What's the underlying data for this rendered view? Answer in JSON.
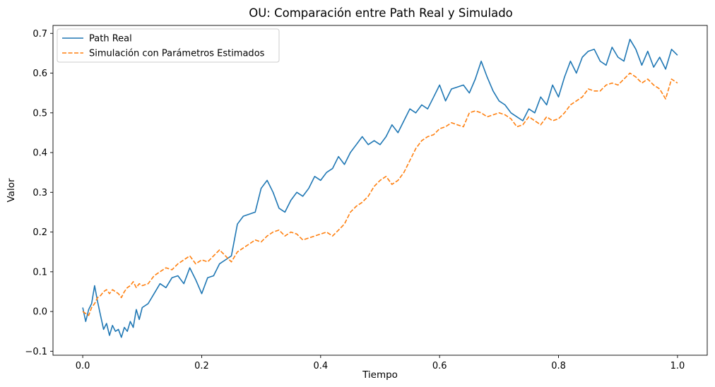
{
  "chart_data": {
    "type": "line",
    "title": "OU: Comparación entre Path Real y Simulado",
    "xlabel": "Tiempo",
    "ylabel": "Valor",
    "xlim": [
      -0.05,
      1.05
    ],
    "ylim": [
      -0.11,
      0.72
    ],
    "xticks": [
      0.0,
      0.2,
      0.4,
      0.6,
      0.8,
      1.0
    ],
    "xtick_labels": [
      "0.0",
      "0.2",
      "0.4",
      "0.6",
      "0.8",
      "1.0"
    ],
    "yticks": [
      -0.1,
      0.0,
      0.1,
      0.2,
      0.3,
      0.4,
      0.5,
      0.6,
      0.7
    ],
    "ytick_labels": [
      "−0.1",
      "0.0",
      "0.1",
      "0.2",
      "0.3",
      "0.4",
      "0.5",
      "0.6",
      "0.7"
    ],
    "grid": false,
    "legend_position": "top-left",
    "series": [
      {
        "name": "Path Real",
        "color": "#1f77b4",
        "style": "solid",
        "x": [
          0.0,
          0.005,
          0.01,
          0.015,
          0.02,
          0.025,
          0.03,
          0.035,
          0.04,
          0.045,
          0.05,
          0.055,
          0.06,
          0.065,
          0.07,
          0.075,
          0.08,
          0.085,
          0.09,
          0.095,
          0.1,
          0.11,
          0.12,
          0.13,
          0.14,
          0.15,
          0.16,
          0.17,
          0.18,
          0.19,
          0.2,
          0.21,
          0.22,
          0.23,
          0.24,
          0.25,
          0.26,
          0.27,
          0.28,
          0.29,
          0.3,
          0.31,
          0.32,
          0.33,
          0.34,
          0.35,
          0.36,
          0.37,
          0.38,
          0.39,
          0.4,
          0.41,
          0.42,
          0.43,
          0.44,
          0.45,
          0.46,
          0.47,
          0.48,
          0.49,
          0.5,
          0.51,
          0.52,
          0.53,
          0.54,
          0.55,
          0.56,
          0.57,
          0.58,
          0.59,
          0.6,
          0.61,
          0.62,
          0.63,
          0.64,
          0.65,
          0.66,
          0.67,
          0.68,
          0.69,
          0.7,
          0.71,
          0.72,
          0.73,
          0.74,
          0.75,
          0.76,
          0.77,
          0.78,
          0.79,
          0.8,
          0.81,
          0.82,
          0.83,
          0.84,
          0.85,
          0.86,
          0.87,
          0.88,
          0.89,
          0.9,
          0.91,
          0.92,
          0.93,
          0.94,
          0.95,
          0.96,
          0.97,
          0.98,
          0.99,
          1.0
        ],
        "y": [
          0.01,
          -0.025,
          0.005,
          0.02,
          0.065,
          0.025,
          -0.01,
          -0.045,
          -0.03,
          -0.06,
          -0.035,
          -0.05,
          -0.045,
          -0.065,
          -0.04,
          -0.05,
          -0.025,
          -0.04,
          0.005,
          -0.02,
          0.01,
          0.02,
          0.045,
          0.07,
          0.06,
          0.085,
          0.09,
          0.07,
          0.11,
          0.08,
          0.045,
          0.085,
          0.09,
          0.12,
          0.13,
          0.14,
          0.22,
          0.24,
          0.245,
          0.25,
          0.31,
          0.33,
          0.3,
          0.26,
          0.25,
          0.28,
          0.3,
          0.29,
          0.31,
          0.34,
          0.33,
          0.35,
          0.36,
          0.39,
          0.37,
          0.4,
          0.42,
          0.44,
          0.42,
          0.43,
          0.42,
          0.44,
          0.47,
          0.45,
          0.48,
          0.51,
          0.5,
          0.52,
          0.51,
          0.54,
          0.57,
          0.53,
          0.56,
          0.565,
          0.57,
          0.55,
          0.585,
          0.63,
          0.59,
          0.555,
          0.53,
          0.52,
          0.5,
          0.49,
          0.48,
          0.51,
          0.5,
          0.54,
          0.52,
          0.57,
          0.54,
          0.59,
          0.63,
          0.6,
          0.64,
          0.655,
          0.66,
          0.63,
          0.62,
          0.665,
          0.64,
          0.63,
          0.685,
          0.66,
          0.62,
          0.655,
          0.615,
          0.64,
          0.61,
          0.66,
          0.645
        ]
      },
      {
        "name": "Simulación con Parámetros Estimados",
        "color": "#ff7f0e",
        "style": "dashed",
        "x": [
          0.0,
          0.005,
          0.01,
          0.015,
          0.02,
          0.025,
          0.03,
          0.035,
          0.04,
          0.045,
          0.05,
          0.055,
          0.06,
          0.065,
          0.07,
          0.075,
          0.08,
          0.085,
          0.09,
          0.095,
          0.1,
          0.11,
          0.12,
          0.13,
          0.14,
          0.15,
          0.16,
          0.17,
          0.18,
          0.19,
          0.2,
          0.21,
          0.22,
          0.23,
          0.24,
          0.25,
          0.26,
          0.27,
          0.28,
          0.29,
          0.3,
          0.31,
          0.32,
          0.33,
          0.34,
          0.35,
          0.36,
          0.37,
          0.38,
          0.39,
          0.4,
          0.41,
          0.42,
          0.43,
          0.44,
          0.45,
          0.46,
          0.47,
          0.48,
          0.49,
          0.5,
          0.51,
          0.52,
          0.53,
          0.54,
          0.55,
          0.56,
          0.57,
          0.58,
          0.59,
          0.6,
          0.61,
          0.62,
          0.63,
          0.64,
          0.65,
          0.66,
          0.67,
          0.68,
          0.69,
          0.7,
          0.71,
          0.72,
          0.73,
          0.74,
          0.75,
          0.76,
          0.77,
          0.78,
          0.79,
          0.8,
          0.81,
          0.82,
          0.83,
          0.84,
          0.85,
          0.86,
          0.87,
          0.88,
          0.89,
          0.9,
          0.91,
          0.92,
          0.93,
          0.94,
          0.95,
          0.96,
          0.97,
          0.98,
          0.99,
          1.0
        ],
        "y": [
          0.0,
          -0.005,
          -0.01,
          0.01,
          0.02,
          0.035,
          0.04,
          0.05,
          0.055,
          0.045,
          0.055,
          0.05,
          0.045,
          0.035,
          0.05,
          0.06,
          0.065,
          0.075,
          0.06,
          0.07,
          0.065,
          0.07,
          0.09,
          0.1,
          0.11,
          0.105,
          0.12,
          0.13,
          0.14,
          0.12,
          0.13,
          0.125,
          0.14,
          0.155,
          0.14,
          0.125,
          0.15,
          0.16,
          0.17,
          0.18,
          0.175,
          0.19,
          0.2,
          0.205,
          0.19,
          0.2,
          0.195,
          0.18,
          0.185,
          0.19,
          0.195,
          0.2,
          0.19,
          0.205,
          0.22,
          0.25,
          0.265,
          0.275,
          0.29,
          0.315,
          0.33,
          0.34,
          0.32,
          0.33,
          0.35,
          0.38,
          0.41,
          0.43,
          0.44,
          0.445,
          0.46,
          0.465,
          0.475,
          0.47,
          0.465,
          0.5,
          0.505,
          0.5,
          0.49,
          0.495,
          0.5,
          0.495,
          0.485,
          0.465,
          0.47,
          0.49,
          0.48,
          0.47,
          0.49,
          0.48,
          0.485,
          0.5,
          0.52,
          0.53,
          0.54,
          0.56,
          0.555,
          0.555,
          0.57,
          0.575,
          0.57,
          0.585,
          0.6,
          0.59,
          0.575,
          0.585,
          0.57,
          0.56,
          0.535,
          0.585,
          0.575
        ]
      }
    ]
  }
}
